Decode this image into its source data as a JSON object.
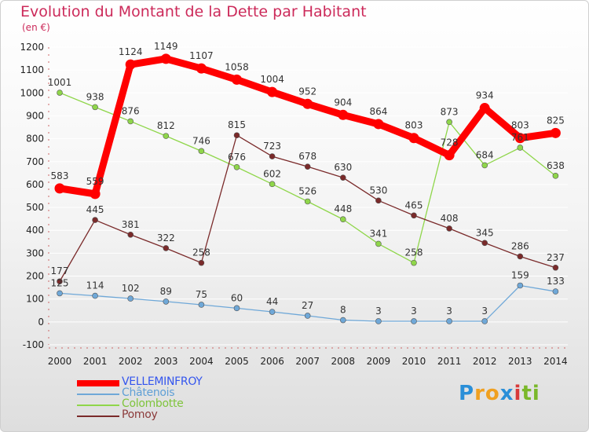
{
  "title": "Evolution du Montant de la Dette par Habitant",
  "unit_label": "(en €)",
  "logo": {
    "letters": [
      {
        "ch": "P",
        "color": "#2a8fd8"
      },
      {
        "ch": "r",
        "color": "#f0a020"
      },
      {
        "ch": "o",
        "color": "#f0a020"
      },
      {
        "ch": "x",
        "color": "#2a8fd8"
      },
      {
        "ch": "i",
        "color": "#d83a3a"
      },
      {
        "ch": "t",
        "color": "#7ab82a"
      },
      {
        "ch": "i",
        "color": "#7ab82a"
      }
    ]
  },
  "chart_data": {
    "type": "line",
    "title": "Evolution du Montant de la Dette par Habitant",
    "ylabel": "(en €)",
    "ylim": [
      -100,
      1200
    ],
    "yticks": [
      -100,
      0,
      100,
      200,
      300,
      400,
      500,
      600,
      700,
      800,
      900,
      1000,
      1100,
      1200
    ],
    "x": [
      "2000",
      "2001",
      "2002",
      "2003",
      "2004",
      "2005",
      "2006",
      "2007",
      "2008",
      "2009",
      "2010",
      "2011",
      "2012",
      "2013",
      "2014"
    ],
    "grid": "horizontal",
    "legend_position": "bottom-left",
    "series": [
      {
        "name": "VELLEMINFROY",
        "color": "#ff0000",
        "label_color": "#3355ee",
        "weight": "thick",
        "values": [
          583,
          559,
          1124,
          1149,
          1107,
          1058,
          1004,
          952,
          904,
          864,
          803,
          728,
          934,
          803,
          825
        ]
      },
      {
        "name": "Châtenois",
        "color": "#6fa8d8",
        "label_color": "#5f9fd6",
        "weight": "thin",
        "values": [
          125,
          114,
          102,
          89,
          75,
          60,
          44,
          27,
          8,
          3,
          3,
          3,
          3,
          159,
          133
        ]
      },
      {
        "name": "Colombotte",
        "color": "#8fd64a",
        "label_color": "#7fc43c",
        "weight": "thin",
        "values": [
          1001,
          938,
          876,
          812,
          746,
          676,
          602,
          526,
          448,
          341,
          258,
          873,
          684,
          761,
          638
        ]
      },
      {
        "name": "Pomoy",
        "color": "#7a2a2a",
        "label_color": "#8b3a3a",
        "weight": "thin",
        "values": [
          177,
          445,
          381,
          322,
          258,
          815,
          723,
          678,
          630,
          530,
          465,
          408,
          345,
          286,
          237
        ]
      }
    ]
  }
}
